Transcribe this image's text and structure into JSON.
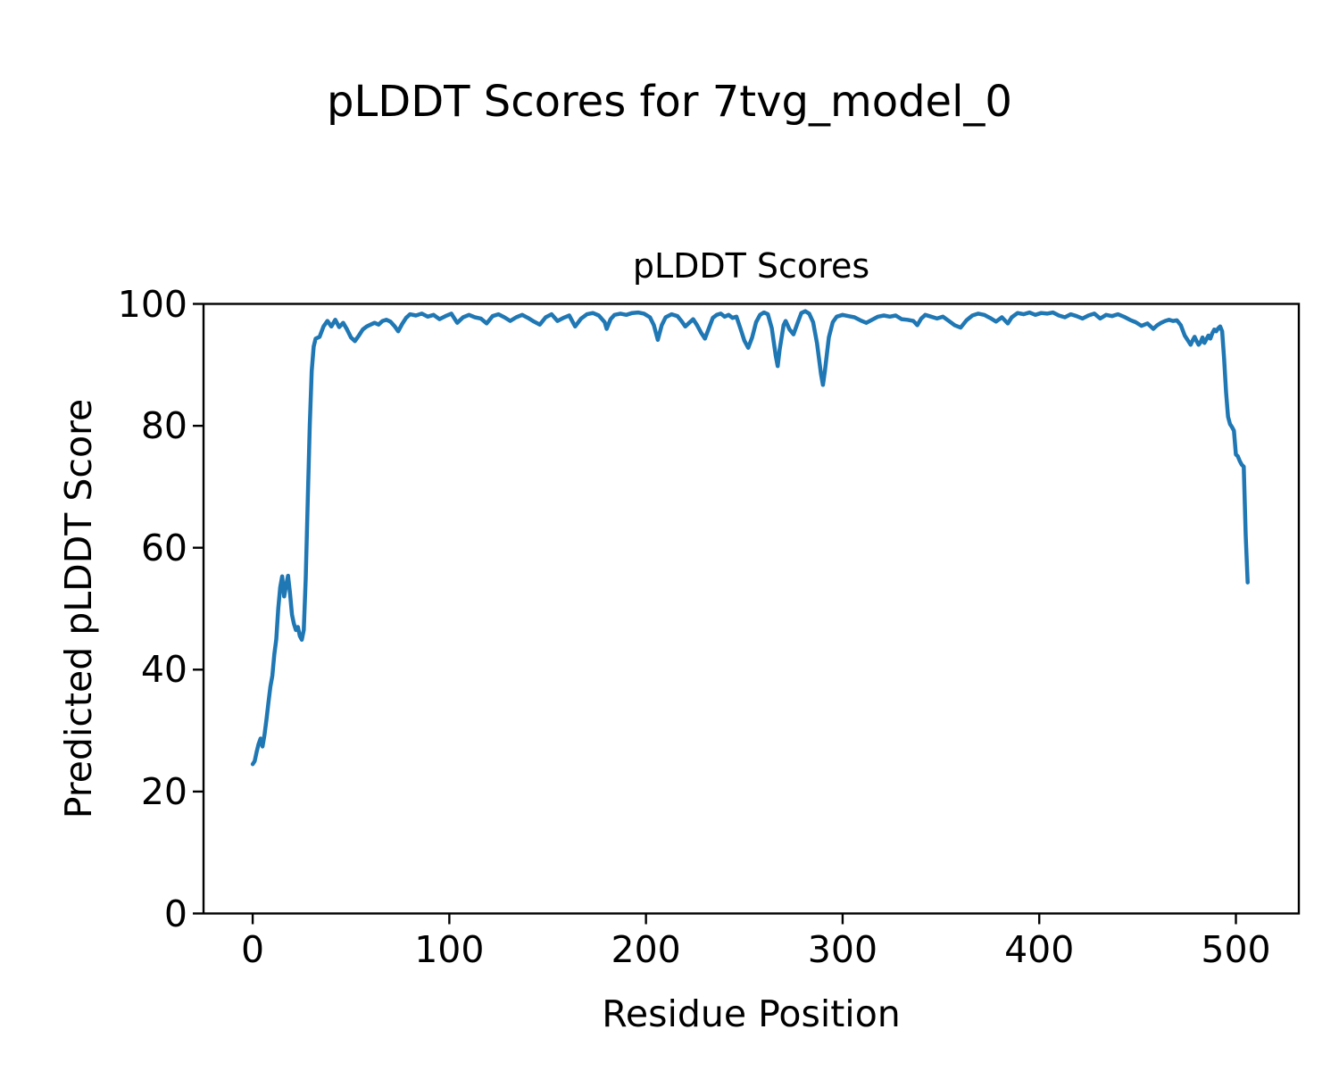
{
  "figure": {
    "suptitle": "pLDDT Scores for 7tvg_model_0"
  },
  "chart_data": {
    "type": "line",
    "title": "pLDDT Scores",
    "xlabel": "Residue Position",
    "ylabel": "Predicted pLDDT Score",
    "xlim": [
      -25,
      532
    ],
    "ylim": [
      0,
      100
    ],
    "x_ticks": [
      0,
      100,
      200,
      300,
      400,
      500
    ],
    "y_ticks": [
      0,
      20,
      40,
      60,
      80,
      100
    ],
    "grid": false,
    "legend_position": "none",
    "line_color": "#1f77b4",
    "series_name": "pLDDT",
    "x": [
      0,
      1,
      2,
      3,
      4,
      5,
      6,
      7,
      8,
      9,
      10,
      11,
      12,
      13,
      14,
      15,
      16,
      17,
      18,
      19,
      20,
      21,
      22,
      23,
      24,
      25,
      26,
      27,
      28,
      29,
      30,
      31,
      32,
      34,
      36,
      38,
      40,
      42,
      44,
      46,
      48,
      50,
      52,
      54,
      56,
      58,
      60,
      62,
      64,
      66,
      68,
      70,
      72,
      74,
      76,
      78,
      80,
      83,
      86,
      89,
      92,
      95,
      98,
      101,
      104,
      107,
      110,
      113,
      116,
      119,
      122,
      125,
      128,
      131,
      134,
      137,
      140,
      143,
      146,
      149,
      152,
      155,
      158,
      161,
      164,
      167,
      170,
      173,
      176,
      179,
      180,
      182,
      184,
      187,
      190,
      193,
      196,
      199,
      202,
      204,
      206,
      208,
      210,
      213,
      216,
      218,
      220,
      222,
      224,
      226,
      228,
      230,
      232,
      234,
      236,
      238,
      240,
      242,
      244,
      246,
      248,
      250,
      252,
      254,
      256,
      258,
      260,
      262,
      264,
      266,
      267,
      268,
      270,
      271,
      273,
      275,
      277,
      279,
      281,
      283,
      285,
      287,
      289,
      290,
      291,
      293,
      295,
      297,
      300,
      303,
      306,
      309,
      312,
      315,
      318,
      321,
      324,
      327,
      330,
      333,
      336,
      338,
      340,
      342,
      345,
      348,
      351,
      354,
      357,
      360,
      363,
      366,
      369,
      372,
      375,
      378,
      381,
      384,
      386,
      389,
      392,
      395,
      398,
      401,
      404,
      407,
      410,
      413,
      416,
      419,
      422,
      425,
      428,
      431,
      434,
      437,
      440,
      443,
      446,
      449,
      452,
      455,
      458,
      460,
      462,
      464,
      466,
      468,
      470,
      472,
      474,
      476,
      477,
      478,
      479,
      480,
      481,
      482,
      483,
      484,
      485,
      486,
      487,
      488,
      489,
      490,
      491,
      492,
      493,
      494,
      495,
      496,
      497,
      498,
      499,
      500,
      501,
      502,
      503,
      504,
      505,
      506
    ],
    "y": [
      24.5,
      25.0,
      26.5,
      27.8,
      28.7,
      27.4,
      29.3,
      31.8,
      34.6,
      37.2,
      39.0,
      42.5,
      45.0,
      50.0,
      53.5,
      55.3,
      52.0,
      53.8,
      55.4,
      52.5,
      49.0,
      47.5,
      46.5,
      47.0,
      45.5,
      44.9,
      46.5,
      55.0,
      68.0,
      80.0,
      89.0,
      93.0,
      94.3,
      94.6,
      96.3,
      97.2,
      96.3,
      97.4,
      96.2,
      96.9,
      95.8,
      94.5,
      93.9,
      94.8,
      95.8,
      96.3,
      96.6,
      96.9,
      96.6,
      97.2,
      97.4,
      97.1,
      96.4,
      95.5,
      96.7,
      97.7,
      98.3,
      98.1,
      98.4,
      97.9,
      98.2,
      97.5,
      98.0,
      98.4,
      96.9,
      97.8,
      98.2,
      97.8,
      97.6,
      96.8,
      98.0,
      98.3,
      97.8,
      97.2,
      97.8,
      98.2,
      97.7,
      97.1,
      96.6,
      97.8,
      98.3,
      97.2,
      97.7,
      98.1,
      96.3,
      97.6,
      98.3,
      98.5,
      98.1,
      97.0,
      95.9,
      97.5,
      98.2,
      98.4,
      98.2,
      98.5,
      98.6,
      98.4,
      97.8,
      96.5,
      94.1,
      96.5,
      97.8,
      98.3,
      98.0,
      97.2,
      96.3,
      96.9,
      97.5,
      96.5,
      95.3,
      94.3,
      96.0,
      97.7,
      98.2,
      98.4,
      97.9,
      98.2,
      97.7,
      97.9,
      96.0,
      94.0,
      92.8,
      94.5,
      97.0,
      98.2,
      98.6,
      98.3,
      96.0,
      91.5,
      89.8,
      92.5,
      96.5,
      97.2,
      95.8,
      95.0,
      96.8,
      98.5,
      98.8,
      98.4,
      97.0,
      93.5,
      88.5,
      86.7,
      89.0,
      94.5,
      97.0,
      97.9,
      98.2,
      98.0,
      97.8,
      97.3,
      96.9,
      97.4,
      97.9,
      98.1,
      97.9,
      98.1,
      97.5,
      97.4,
      97.2,
      96.5,
      97.6,
      98.2,
      97.9,
      97.6,
      97.9,
      97.2,
      96.5,
      96.1,
      97.3,
      98.1,
      98.4,
      98.2,
      97.7,
      97.1,
      97.8,
      96.8,
      97.8,
      98.5,
      98.3,
      98.6,
      98.2,
      98.5,
      98.4,
      98.6,
      98.1,
      97.8,
      98.3,
      98.0,
      97.6,
      98.1,
      98.4,
      97.6,
      98.2,
      98.0,
      98.3,
      97.9,
      97.4,
      97.0,
      96.4,
      96.8,
      95.9,
      96.5,
      96.9,
      97.2,
      97.4,
      97.2,
      97.3,
      96.5,
      94.8,
      93.8,
      93.3,
      94.0,
      94.6,
      93.9,
      93.3,
      93.7,
      94.5,
      93.6,
      94.2,
      94.8,
      94.3,
      95.2,
      95.8,
      95.5,
      96.0,
      96.3,
      95.5,
      91.0,
      85.5,
      81.5,
      80.3,
      79.8,
      79.2,
      75.3,
      75.0,
      74.2,
      73.6,
      73.3,
      62.0,
      54.3
    ]
  }
}
